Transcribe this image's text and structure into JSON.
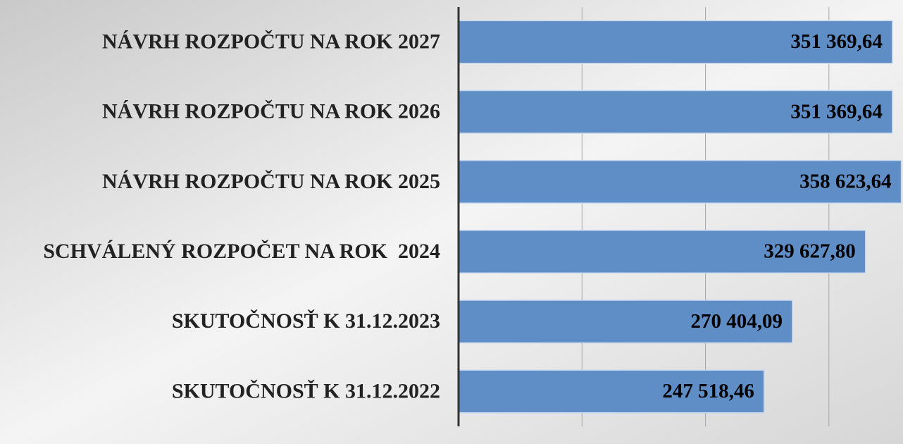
{
  "chart_data": {
    "type": "bar",
    "orientation": "horizontal",
    "categories": [
      "NÁVRH ROZPOČTU NA ROK 2027",
      "NÁVRH ROZPOČTU NA ROK 2026",
      "NÁVRH ROZPOČTU NA ROK 2025",
      "SCHVÁLENÝ ROZPOČET NA ROK  2024",
      "SKUTOČNOSŤ K 31.12.2023",
      "SKUTOČNOSŤ K 31.12.2022"
    ],
    "values": [
      351369.64,
      351369.64,
      358623.64,
      329627.8,
      270404.09,
      247518.46
    ],
    "value_labels": [
      "351 369,64",
      "351 369,64",
      "358 623,64",
      "329 627,80",
      "270 404,09",
      "247 518,46"
    ],
    "color": "#5f8dc6",
    "xlim": [
      0,
      360000
    ],
    "xticks": [
      0,
      100000,
      200000,
      300000
    ],
    "grid": true
  }
}
